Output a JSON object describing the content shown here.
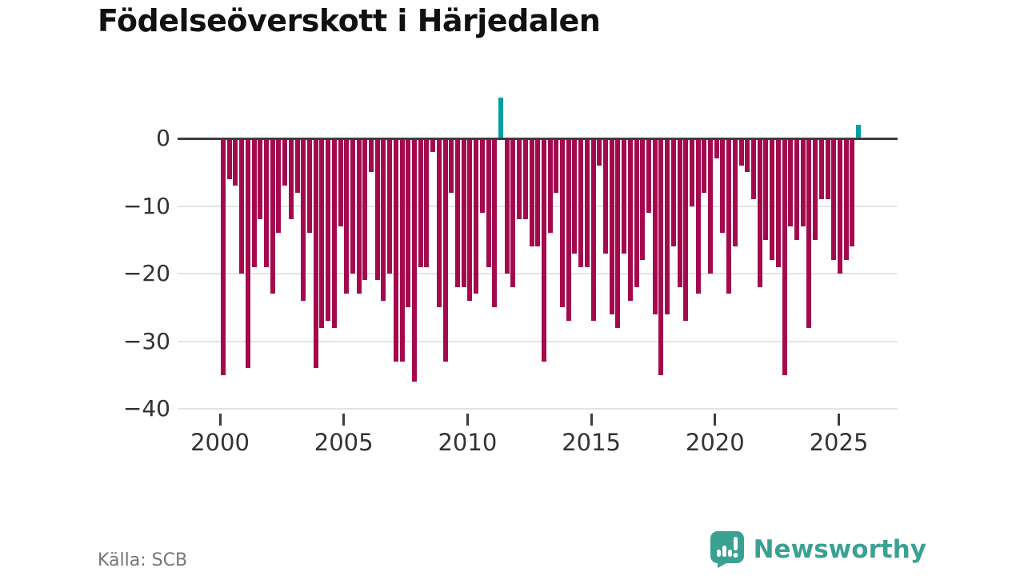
{
  "header": {
    "title": "Födelseöverskott i Härjedalen"
  },
  "footer": {
    "source": "Källa: SCB",
    "brand": "Newsworthy",
    "brand_icon": "bar-chart-speech-bubble-icon"
  },
  "colors": {
    "bar_negative": "#a4094d",
    "bar_positive": "#00a0a0",
    "axis": "#3d3d3d",
    "gridline": "#e4e4e4",
    "tick_label": "#333333",
    "source_text": "#767676",
    "brand_teal": "#3aa192"
  },
  "chart_data": {
    "type": "bar",
    "title": "Födelseöverskott i Härjedalen",
    "xlabel": "",
    "ylabel": "",
    "x_unit": "quarter",
    "start_year": 2000,
    "periods_per_year": 4,
    "values": [
      -35,
      -6,
      -7,
      -20,
      -34,
      -19,
      -12,
      -19,
      -23,
      -14,
      -7,
      -12,
      -8,
      -24,
      -14,
      -34,
      -28,
      -27,
      -28,
      -13,
      -23,
      -20,
      -23,
      -21,
      -5,
      -21,
      -24,
      -20,
      -33,
      -33,
      -25,
      -36,
      -19,
      -19,
      -2,
      -25,
      -33,
      -8,
      -22,
      -22,
      -24,
      -23,
      -11,
      -19,
      -25,
      6,
      -20,
      -22,
      -12,
      -12,
      -16,
      -16,
      -33,
      -14,
      -8,
      -25,
      -27,
      -17,
      -19,
      -19,
      -27,
      -4,
      -17,
      -26,
      -28,
      -17,
      -24,
      -22,
      -18,
      -11,
      -26,
      -35,
      -26,
      -16,
      -22,
      -27,
      -10,
      -23,
      -8,
      -20,
      -3,
      -14,
      -23,
      -16,
      -4,
      -5,
      -9,
      -22,
      -15,
      -18,
      -19,
      -35,
      -13,
      -15,
      -13,
      -28,
      -15,
      -9,
      -9,
      -18,
      -20,
      -18,
      -16,
      2
    ],
    "x_ticks": [
      "2000",
      "2005",
      "2010",
      "2015",
      "2020",
      "2025"
    ],
    "y_ticks": [
      0,
      -10,
      -20,
      -30,
      -40
    ],
    "y_tick_labels": [
      "0",
      "−10",
      "−20",
      "−30",
      "−40"
    ],
    "ylim": [
      -40,
      7
    ],
    "grid": "horizontal",
    "legend": "none",
    "color_rule": "negative bars maroon, positive bars teal"
  }
}
